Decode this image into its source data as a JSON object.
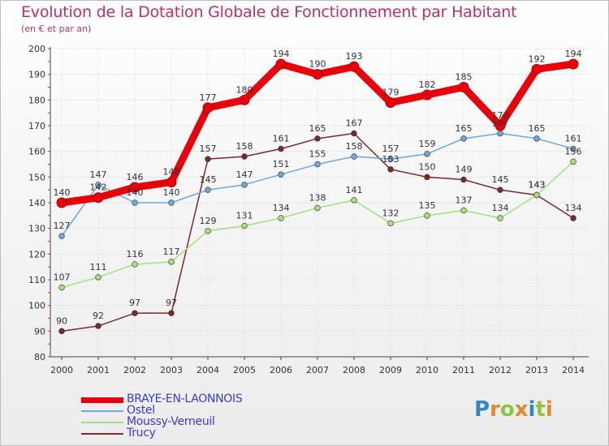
{
  "header": {
    "title": "Evolution de la Dotation Globale de Fonctionnement par Habitant",
    "subtitle": "(en € et par an)"
  },
  "chart_data": {
    "type": "line",
    "title": "Evolution de la Dotation Globale de Fonctionnement par Habitant",
    "subtitle": "(en € et par an)",
    "xlabel": "",
    "ylabel": "",
    "ylim": [
      80,
      200
    ],
    "yticks": [
      80,
      90,
      100,
      110,
      120,
      130,
      140,
      150,
      160,
      170,
      180,
      190,
      200
    ],
    "grid": true,
    "legend": "bottom-left",
    "x": [
      "2000",
      "2001",
      "2002",
      "2003",
      "2004",
      "2005",
      "2006",
      "2007",
      "2008",
      "2009",
      "2010",
      "2011",
      "2012",
      "2013",
      "2014"
    ],
    "series": [
      {
        "name": "BRAYE-EN-LAONNOIS",
        "color": "#e8000b",
        "emphasis": true,
        "values": [
          140,
          142,
          146,
          148,
          177,
          180,
          194,
          190,
          193,
          179,
          182,
          185,
          170,
          192,
          194
        ]
      },
      {
        "name": "Ostel",
        "color": "#6fa8d8",
        "values": [
          127,
          147,
          140,
          140,
          145,
          147,
          151,
          155,
          158,
          157,
          159,
          165,
          167,
          165,
          161
        ]
      },
      {
        "name": "Moussy-Verneuil",
        "color": "#a5e07a",
        "values": [
          107,
          111,
          116,
          117,
          129,
          131,
          134,
          138,
          141,
          132,
          135,
          137,
          134,
          143,
          156
        ]
      },
      {
        "name": "Trucy",
        "color": "#7a2a2a",
        "values": [
          90,
          92,
          97,
          97,
          157,
          158,
          161,
          165,
          167,
          153,
          150,
          149,
          145,
          143,
          134
        ]
      }
    ],
    "point_labels": [
      {
        "series": 0,
        "values": [
          "140",
          "142",
          "146",
          "148",
          "177",
          "180",
          "194",
          "190",
          "193",
          "179",
          "182",
          "185",
          "170",
          "192",
          "194"
        ]
      },
      {
        "series": 1,
        "values": [
          "127",
          "147",
          "140",
          "140",
          "145",
          "147",
          "151",
          "155",
          "158",
          "157",
          "159",
          "165",
          "167",
          "165",
          "161"
        ]
      },
      {
        "series": 2,
        "values": [
          "107",
          "111",
          "116",
          "117",
          "129",
          "131",
          "134",
          "138",
          "141",
          "132",
          "135",
          "137",
          "134",
          "143",
          "156"
        ]
      },
      {
        "series": 3,
        "values": [
          "90",
          "92",
          "97",
          "97",
          "157",
          "158",
          "161",
          "165",
          "167",
          "153",
          "150",
          "149",
          "145",
          "143",
          "134"
        ]
      }
    ]
  },
  "legend": {
    "items": [
      {
        "label": "BRAYE-EN-LAONNOIS",
        "color": "#e8000b",
        "thickness": "thick"
      },
      {
        "label": "Ostel",
        "color": "#6fa8d8",
        "thickness": "thin"
      },
      {
        "label": "Moussy-Verneuil",
        "color": "#a5e07a",
        "thickness": "thin"
      },
      {
        "label": "Trucy",
        "color": "#7a2a2a",
        "thickness": "thin"
      }
    ]
  },
  "logo": {
    "text": "Proxiti",
    "letters": [
      "P",
      "r",
      "o",
      "x",
      "i",
      "t",
      "i"
    ],
    "colors": [
      "#2f86c8",
      "#e8872a",
      "#8cc63f",
      "#e8872a",
      "#2f86c8",
      "#8cc63f",
      "#e8872a"
    ]
  }
}
